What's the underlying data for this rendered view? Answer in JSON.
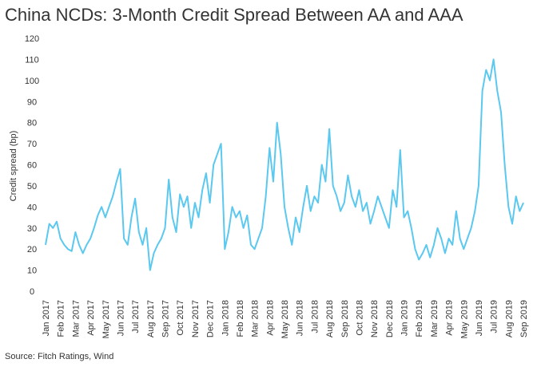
{
  "chart_data": {
    "type": "line",
    "title": "China NCDs: 3-Month Credit Spread Between AA and AAA",
    "y_label": "Credit spread (bp)",
    "source": "Source: Fitch Ratings, Wind",
    "categories": [
      "Jan 2017",
      null,
      null,
      null,
      "Feb 2017",
      null,
      null,
      null,
      "Mar 2017",
      null,
      null,
      null,
      "Apr 2017",
      null,
      null,
      null,
      "May 2017",
      null,
      null,
      null,
      "Jun 2017",
      null,
      null,
      null,
      "Jul 2017",
      null,
      null,
      null,
      "Aug 2017",
      null,
      null,
      null,
      "Sep 2017",
      null,
      null,
      null,
      "Oct 2017",
      null,
      null,
      null,
      "Nov 2017",
      null,
      null,
      null,
      "Dec 2017",
      null,
      null,
      null,
      "Jan 2018",
      null,
      null,
      null,
      "Feb 2018",
      null,
      null,
      null,
      "Mar 2018",
      null,
      null,
      null,
      "Apr 2018",
      null,
      null,
      null,
      "May 2018",
      null,
      null,
      null,
      "Jun 2018",
      null,
      null,
      null,
      "Jul 2018",
      null,
      null,
      null,
      "Aug 2018",
      null,
      null,
      null,
      "Sep 2018",
      null,
      null,
      null,
      "Oct 2018",
      null,
      null,
      null,
      "Nov 2018",
      null,
      null,
      null,
      "Dec 2018",
      null,
      null,
      null,
      "Jan 2019",
      null,
      null,
      null,
      "Feb 2019",
      null,
      null,
      null,
      "Mar 2019",
      null,
      null,
      null,
      "Apr 2019",
      null,
      null,
      null,
      "May 2019",
      null,
      null,
      null,
      "Jun 2019",
      null,
      null,
      null,
      "Jul 2019",
      null,
      null,
      null,
      "Aug 2019",
      null,
      null,
      null,
      "Sep 2019"
    ],
    "series": [
      {
        "name": "AA-AAA spread",
        "color": "#5bc8f0",
        "values": [
          22,
          32,
          30,
          33,
          25,
          22,
          20,
          19,
          28,
          22,
          18,
          22,
          25,
          30,
          36,
          40,
          35,
          40,
          45,
          52,
          58,
          25,
          22,
          35,
          44,
          28,
          22,
          30,
          10,
          18,
          22,
          25,
          30,
          53,
          35,
          28,
          46,
          40,
          45,
          30,
          42,
          35,
          48,
          56,
          42,
          60,
          65,
          70,
          20,
          28,
          40,
          35,
          38,
          30,
          36,
          22,
          20,
          25,
          30,
          45,
          68,
          52,
          80,
          65,
          40,
          30,
          22,
          35,
          28,
          40,
          50,
          38,
          45,
          42,
          60,
          52,
          77,
          50,
          45,
          38,
          42,
          55,
          45,
          40,
          48,
          38,
          42,
          32,
          38,
          45,
          40,
          35,
          30,
          48,
          40,
          67,
          35,
          38,
          30,
          20,
          15,
          18,
          22,
          16,
          22,
          30,
          25,
          18,
          25,
          22,
          38,
          25,
          20,
          25,
          30,
          38,
          50,
          95,
          105,
          100,
          110,
          95,
          85,
          60,
          40,
          32,
          45,
          38,
          42
        ]
      }
    ],
    "ylim": [
      0,
      120
    ],
    "yticks": [
      0,
      10,
      20,
      30,
      40,
      50,
      60,
      70,
      80,
      90,
      100,
      110,
      120
    ],
    "grid": false
  }
}
